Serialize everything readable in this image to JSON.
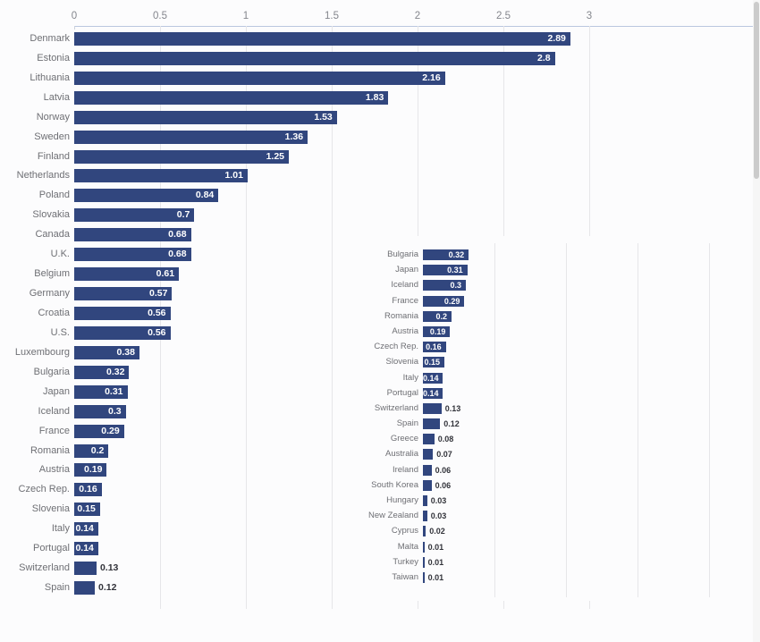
{
  "page": {
    "background": "#fcfcfd"
  },
  "colors": {
    "bar": "#31467e",
    "category_label": "#6e6f74",
    "value_inside": "#ffffff",
    "value_outside": "#32333a",
    "tick_label": "#84868d",
    "gridline": "#e6e6e9",
    "axis_line": "#bac7df",
    "scrollbar_thumb": "#cbcbcb"
  },
  "chart_data": [
    {
      "id": "main",
      "type": "bar",
      "orientation": "horizontal",
      "title": "",
      "xlabel": "",
      "ylabel": "",
      "xlim": [
        0,
        3
      ],
      "grid": true,
      "legend": false,
      "x_tick_labels": [
        "0",
        "0.5",
        "1",
        "1.5",
        "2",
        "2.5",
        "3"
      ],
      "x_tick_values": [
        0,
        0.5,
        1,
        1.5,
        2,
        2.5,
        3
      ],
      "categories": [
        "Denmark",
        "Estonia",
        "Lithuania",
        "Latvia",
        "Norway",
        "Sweden",
        "Finland",
        "Netherlands",
        "Poland",
        "Slovakia",
        "Canada",
        "U.K.",
        "Belgium",
        "Germany",
        "Croatia",
        "U.S.",
        "Luxembourg",
        "Bulgaria",
        "Japan",
        "Iceland",
        "France",
        "Romania",
        "Austria",
        "Czech Rep.",
        "Slovenia",
        "Italy",
        "Portugal",
        "Switzerland",
        "Spain"
      ],
      "values": [
        2.89,
        2.8,
        2.16,
        1.83,
        1.53,
        1.36,
        1.25,
        1.01,
        0.84,
        0.7,
        0.68,
        0.68,
        0.61,
        0.57,
        0.56,
        0.56,
        0.38,
        0.32,
        0.31,
        0.3,
        0.29,
        0.2,
        0.19,
        0.16,
        0.15,
        0.14,
        0.14,
        0.13,
        0.12
      ],
      "value_labels": [
        "2.89",
        "2.8",
        "2.16",
        "1.83",
        "1.53",
        "1.36",
        "1.25",
        "1.01",
        "0.84",
        "0.7",
        "0.68",
        "0.68",
        "0.61",
        "0.57",
        "0.56",
        "0.56",
        "0.38",
        "0.32",
        "0.31",
        "0.3",
        "0.29",
        "0.2",
        "0.19",
        "0.16",
        "0.15",
        "0.14",
        "0.14",
        "0.13",
        "0.12"
      ]
    },
    {
      "id": "inset",
      "type": "bar",
      "orientation": "horizontal",
      "title": "",
      "xlabel": "",
      "ylabel": "",
      "xlim": [
        0,
        2.25
      ],
      "grid": true,
      "legend": false,
      "x_tick_labels": [],
      "x_gridline_values": [
        0.5,
        1,
        1.5,
        2
      ],
      "categories": [
        "Bulgaria",
        "Japan",
        "Iceland",
        "France",
        "Romania",
        "Austria",
        "Czech Rep.",
        "Slovenia",
        "Italy",
        "Portugal",
        "Switzerland",
        "Spain",
        "Greece",
        "Australia",
        "Ireland",
        "South Korea",
        "Hungary",
        "New Zealand",
        "Cyprus",
        "Malta",
        "Turkey",
        "Taiwan"
      ],
      "values": [
        0.32,
        0.31,
        0.3,
        0.29,
        0.2,
        0.19,
        0.16,
        0.15,
        0.14,
        0.14,
        0.13,
        0.12,
        0.08,
        0.07,
        0.06,
        0.06,
        0.03,
        0.03,
        0.02,
        0.01,
        0.01,
        0.01
      ],
      "value_labels": [
        "0.32",
        "0.31",
        "0.3",
        "0.29",
        "0.2",
        "0.19",
        "0.16",
        "0.15",
        "0.14",
        "0.14",
        "0.13",
        "0.12",
        "0.08",
        "0.07",
        "0.06",
        "0.06",
        "0.03",
        "0.03",
        "0.02",
        "0.01",
        "0.01",
        "0.01"
      ]
    }
  ]
}
